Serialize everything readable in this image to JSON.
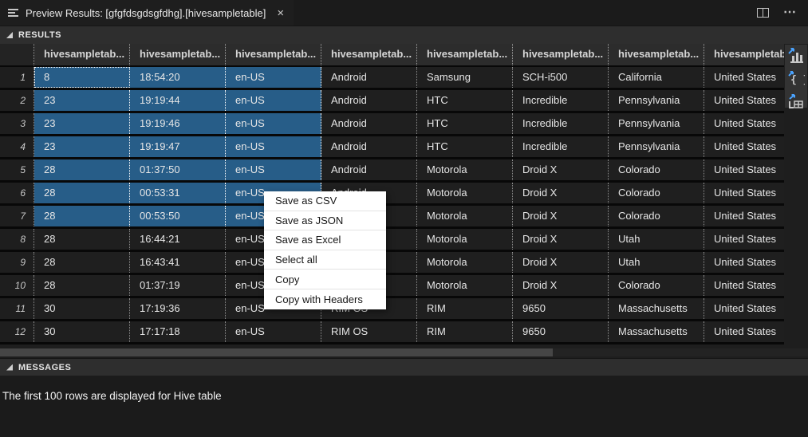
{
  "tab": {
    "title": "Preview Results: [gfgfdsgdsgfdhg].[hivesampletable]",
    "close_glyph": "×",
    "more_actions_glyph": "⋯"
  },
  "results": {
    "title": "RESULTS",
    "grid": {
      "columns": [
        "hivesampletab...",
        "hivesampletab...",
        "hivesampletab...",
        "hivesampletab...",
        "hivesampletab...",
        "hivesampletab...",
        "hivesampletab...",
        "hivesampletab..."
      ],
      "rows": [
        {
          "n": "1",
          "cells": [
            "8",
            "18:54:20",
            "en-US",
            "Android",
            "Samsung",
            "SCH-i500",
            "California",
            "United States"
          ]
        },
        {
          "n": "2",
          "cells": [
            "23",
            "19:19:44",
            "en-US",
            "Android",
            "HTC",
            "Incredible",
            "Pennsylvania",
            "United States"
          ]
        },
        {
          "n": "3",
          "cells": [
            "23",
            "19:19:46",
            "en-US",
            "Android",
            "HTC",
            "Incredible",
            "Pennsylvania",
            "United States"
          ]
        },
        {
          "n": "4",
          "cells": [
            "23",
            "19:19:47",
            "en-US",
            "Android",
            "HTC",
            "Incredible",
            "Pennsylvania",
            "United States"
          ]
        },
        {
          "n": "5",
          "cells": [
            "28",
            "01:37:50",
            "en-US",
            "Android",
            "Motorola",
            "Droid X",
            "Colorado",
            "United States"
          ]
        },
        {
          "n": "6",
          "cells": [
            "28",
            "00:53:31",
            "en-US",
            "Android",
            "Motorola",
            "Droid X",
            "Colorado",
            "United States"
          ]
        },
        {
          "n": "7",
          "cells": [
            "28",
            "00:53:50",
            "en-US",
            "Android",
            "Motorola",
            "Droid X",
            "Colorado",
            "United States"
          ]
        },
        {
          "n": "8",
          "cells": [
            "28",
            "16:44:21",
            "en-US",
            "Android",
            "Motorola",
            "Droid X",
            "Utah",
            "United States"
          ]
        },
        {
          "n": "9",
          "cells": [
            "28",
            "16:43:41",
            "en-US",
            "Android",
            "Motorola",
            "Droid X",
            "Utah",
            "United States"
          ]
        },
        {
          "n": "10",
          "cells": [
            "28",
            "01:37:19",
            "en-US",
            "Android",
            "Motorola",
            "Droid X",
            "Colorado",
            "United States"
          ]
        },
        {
          "n": "11",
          "cells": [
            "30",
            "17:19:36",
            "en-US",
            "RIM OS",
            "RIM",
            "9650",
            "Massachusetts",
            "United States"
          ]
        },
        {
          "n": "12",
          "cells": [
            "30",
            "17:17:18",
            "en-US",
            "RIM OS",
            "RIM",
            "9650",
            "Massachusetts",
            "United States"
          ]
        }
      ],
      "selection": {
        "row_start": 0,
        "row_end": 6,
        "col_start": 0,
        "col_end": 2
      },
      "focus_cell": {
        "row": 0,
        "col": 0
      }
    },
    "export_icons": [
      "save-as-csv-icon",
      "save-as-json-icon",
      "save-as-excel-icon"
    ]
  },
  "context_menu": {
    "items": [
      "Save as CSV",
      "Save as JSON",
      "Save as Excel",
      "Select all",
      "Copy",
      "Copy with Headers"
    ]
  },
  "messages": {
    "title": "MESSAGES",
    "text": "The first 100 rows are displayed for Hive table"
  },
  "colors": {
    "selection_bg": "#275d88",
    "accent_blue": "#4aa3ff",
    "menu_bg": "#ffffff"
  }
}
